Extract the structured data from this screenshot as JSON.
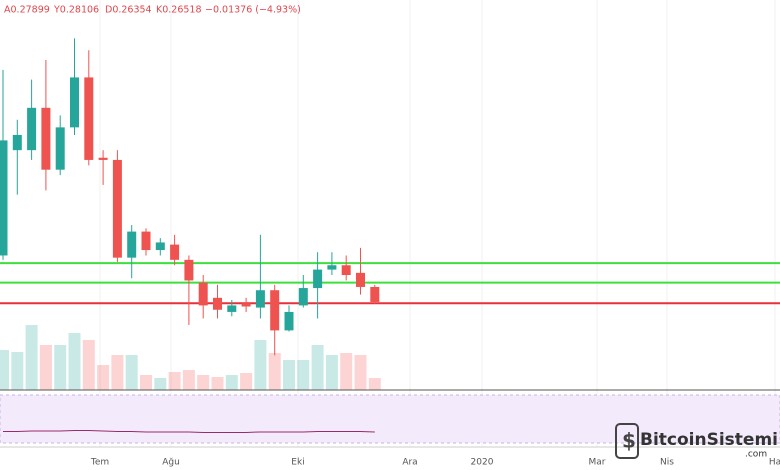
{
  "chart_data": {
    "type": "candlestick",
    "header": [
      "A0.27899",
      "Y0.28106",
      "D0.26354",
      "K0.26518",
      "−0.01376 (−4.93%)"
    ],
    "open": [
      0.308,
      0.405,
      0.405,
      0.444,
      0.387,
      0.426,
      0.472,
      0.398,
      0.396,
      0.306,
      0.33,
      0.313,
      0.318,
      0.304,
      0.283,
      0.269,
      0.256,
      0.264,
      0.26,
      0.276,
      0.239,
      0.262,
      0.278,
      0.295,
      0.299,
      0.292,
      0.27899
    ],
    "high": [
      0.479,
      0.433,
      0.47,
      0.488,
      0.437,
      0.508,
      0.497,
      0.405,
      0.405,
      0.336,
      0.333,
      0.324,
      0.327,
      0.308,
      0.29,
      0.281,
      0.267,
      0.269,
      0.327,
      0.281,
      0.262,
      0.29,
      0.311,
      0.311,
      0.308,
      0.315,
      0.28106
    ],
    "low": [
      0.304,
      0.364,
      0.396,
      0.368,
      0.382,
      0.419,
      0.391,
      0.373,
      0.302,
      0.287,
      0.308,
      0.308,
      0.299,
      0.244,
      0.25,
      0.25,
      0.252,
      0.256,
      0.25,
      0.216,
      0.238,
      0.26,
      0.25,
      0.29,
      0.285,
      0.272,
      0.26354
    ],
    "close": [
      0.414,
      0.419,
      0.444,
      0.387,
      0.426,
      0.472,
      0.396,
      0.396,
      0.306,
      0.33,
      0.313,
      0.32,
      0.304,
      0.285,
      0.262,
      0.258,
      0.262,
      0.261,
      0.276,
      0.239,
      0.256,
      0.278,
      0.295,
      0.299,
      0.29,
      0.279,
      0.26518
    ],
    "volume": [
      40,
      38,
      65,
      45,
      45,
      57,
      50,
      25,
      35,
      35,
      15,
      12,
      18,
      20,
      15,
      13,
      15,
      17,
      50,
      37,
      30,
      30,
      45,
      35,
      37,
      35,
      12
    ],
    "rsi": [
      24,
      24,
      25,
      25,
      25,
      26,
      26,
      25,
      24,
      24,
      23,
      23,
      23,
      23,
      22,
      22,
      22,
      22,
      23,
      23,
      23,
      23,
      24,
      24,
      24,
      24,
      23
    ],
    "ylim": [
      0.1841,
      0.5433
    ],
    "volume_ylim": [
      0,
      100
    ],
    "rsi_ylim": [
      0,
      100
    ],
    "up_color": "#26a69a",
    "down_color": "#ef5350",
    "levels": [
      {
        "value": 0.301,
        "color": "#3be03b"
      },
      {
        "value": 0.283,
        "color": "#3be03b"
      },
      {
        "value": 0.264,
        "color": "#e8303a"
      }
    ],
    "x_labels": [
      "Tem",
      "Ağu",
      "Eki",
      "Ara",
      "2020",
      "Mar",
      "Nis",
      "Ha"
    ]
  },
  "watermark": {
    "name": "BitcoinSistemi",
    "domain": ".com"
  }
}
